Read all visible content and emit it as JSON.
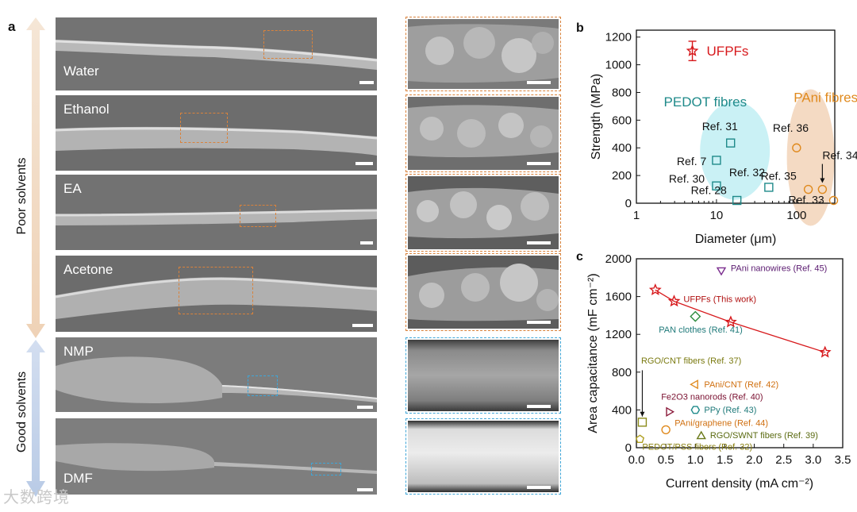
{
  "panel_a": {
    "letter": "a",
    "poor_label": "Poor solvents",
    "good_label": "Good solvents",
    "images": [
      {
        "label": "Water"
      },
      {
        "label": "Ethanol"
      },
      {
        "label": "EA"
      },
      {
        "label": "Acetone"
      },
      {
        "label": "NMP"
      },
      {
        "label": "DMF"
      }
    ]
  },
  "panel_b": {
    "letter": "b",
    "chart_data": {
      "type": "scatter",
      "xlabel": "Diameter (μm)",
      "ylabel": "Strength (MPa)",
      "x_scale": "log",
      "xlim": [
        1,
        300
      ],
      "ylim": [
        0,
        1250
      ],
      "x_ticks": [
        "1",
        "10",
        "100"
      ],
      "y_ticks": [
        "0",
        "200",
        "400",
        "600",
        "800",
        "1000",
        "1200"
      ],
      "groups": [
        {
          "name": "UFPFs",
          "color": "#d7191c",
          "marker": "star",
          "points": [
            {
              "x": 5,
              "y": 1100,
              "err": 70
            }
          ]
        },
        {
          "name": "PEDOT fibres",
          "color": "#1f8a8a",
          "marker": "square",
          "points": [
            {
              "x": 10,
              "y": 310,
              "label": "Ref. 7"
            },
            {
              "x": 15,
              "y": 435,
              "label": "Ref. 31"
            },
            {
              "x": 10,
              "y": 125,
              "label": "Ref. 30"
            },
            {
              "x": 18,
              "y": 20,
              "label": "Ref. 28"
            },
            {
              "x": 45,
              "y": 115,
              "label": "Ref. 32"
            }
          ]
        },
        {
          "name": "PAni fibres",
          "color": "#e08a1e",
          "marker": "circle",
          "points": [
            {
              "x": 100,
              "y": 400,
              "label": "Ref. 36"
            },
            {
              "x": 210,
              "y": 100,
              "label": "Ref. 34"
            },
            {
              "x": 140,
              "y": 100,
              "label": "Ref. 35"
            },
            {
              "x": 290,
              "y": 20,
              "label": "Ref. 33"
            }
          ]
        }
      ]
    }
  },
  "panel_c": {
    "letter": "c",
    "chart_data": {
      "type": "scatter",
      "xlabel": "Current density (mA cm⁻²)",
      "ylabel": "Area capacitance (mF cm⁻²)",
      "xlim": [
        0,
        3.5
      ],
      "ylim": [
        0,
        2000
      ],
      "x_ticks": [
        "0.0",
        "0.5",
        "1.0",
        "1.5",
        "2.0",
        "2.5",
        "3.0",
        "3.5"
      ],
      "y_ticks": [
        "0",
        "400",
        "800",
        "1200",
        "1600",
        "2000"
      ],
      "series": [
        {
          "name": "UFPFs (This work)",
          "color": "#d7191c",
          "marker": "star",
          "line": true,
          "points": [
            {
              "x": 0.32,
              "y": 1670
            },
            {
              "x": 0.64,
              "y": 1550
            },
            {
              "x": 1.6,
              "y": 1330
            },
            {
              "x": 3.2,
              "y": 1010
            }
          ]
        },
        {
          "name": "PAni nanowires (Ref. 45)",
          "color": "#7b2d8e",
          "marker": "tri-down",
          "points": [
            {
              "x": 1.44,
              "y": 1880
            }
          ]
        },
        {
          "name": "PAN clothes (Ref. 41)",
          "color": "#2e8b3e",
          "marker": "diamond",
          "points": [
            {
              "x": 1.0,
              "y": 1390
            }
          ]
        },
        {
          "name": "RGO/CNT fibers (Ref. 37)",
          "color": "#8b8b1a",
          "marker": "square",
          "points": [
            {
              "x": 0.1,
              "y": 270
            }
          ]
        },
        {
          "name": "PAni/CNT (Ref. 42)",
          "color": "#e08a1e",
          "marker": "tri-left",
          "points": [
            {
              "x": 1.0,
              "y": 670
            }
          ]
        },
        {
          "name": "Fe2O3 nanorods (Ref. 40)",
          "color": "#8b1a3a",
          "marker": "tri-right",
          "points": [
            {
              "x": 0.55,
              "y": 380
            }
          ]
        },
        {
          "name": "PPy (Ref. 43)",
          "color": "#1f8a8a",
          "marker": "hexagon",
          "points": [
            {
              "x": 1.0,
              "y": 400
            }
          ]
        },
        {
          "name": "PAni/graphene (Ref. 44)",
          "color": "#e08a1e",
          "marker": "circle",
          "points": [
            {
              "x": 0.5,
              "y": 190
            }
          ]
        },
        {
          "name": "RGO/SWNT fibers (Ref. 39)",
          "color": "#6b7a1a",
          "marker": "tri-up",
          "points": [
            {
              "x": 1.1,
              "y": 120
            }
          ]
        },
        {
          "name": "PEDOT/PSS fibers (Ref. 32)",
          "color": "#b0a020",
          "marker": "pentagon",
          "points": [
            {
              "x": 0.06,
              "y": 90
            }
          ]
        }
      ]
    }
  },
  "watermark": "大数跨境",
  "colors": {
    "poor_arrow": "#f3dcc6",
    "good_arrow": "#c9d7ea",
    "orange_box": "#d9823b",
    "blue_box": "#3fa6d8"
  }
}
